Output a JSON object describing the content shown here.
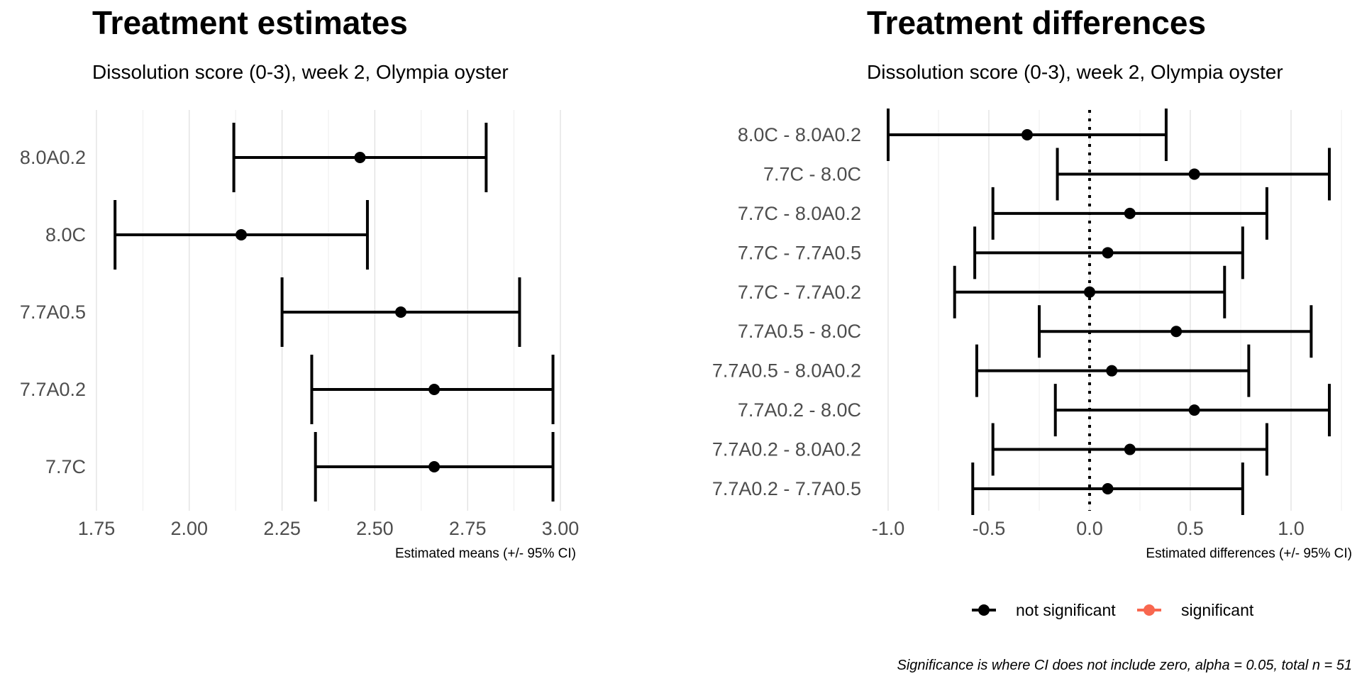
{
  "chart_data": [
    {
      "type": "errorbar",
      "title": "Treatment estimates",
      "subtitle": "Dissolution score (0-3), week 2, Olympia oyster",
      "xlabel": "Estimated means (+/- 95% CI)",
      "ylabel": "",
      "xlim": [
        1.75,
        3.0
      ],
      "xticks": [
        "1.75",
        "2.00",
        "2.25",
        "2.50",
        "2.75",
        "3.00"
      ],
      "grid": true,
      "categories": [
        "8.0A0.2",
        "8.0C",
        "7.7A0.5",
        "7.7A0.2",
        "7.7C"
      ],
      "estimate": [
        2.46,
        2.14,
        2.57,
        2.66,
        2.66
      ],
      "lower": [
        2.12,
        1.8,
        2.25,
        2.33,
        2.34
      ],
      "upper": [
        2.8,
        2.48,
        2.89,
        2.98,
        2.98
      ],
      "color": "#000000"
    },
    {
      "type": "errorbar",
      "title": "Treatment differences",
      "subtitle": "Dissolution score (0-3), week 2, Olympia oyster",
      "xlabel": "Estimated differences (+/- 95% CI)",
      "ylabel": "",
      "xlim": [
        -1.0,
        1.0
      ],
      "xticks": [
        "-1.0",
        "-0.5",
        "0.0",
        "0.5",
        "1.0"
      ],
      "reference_line": 0.0,
      "grid": true,
      "categories": [
        "8.0C - 8.0A0.2",
        "7.7C - 8.0C",
        "7.7C - 8.0A0.2",
        "7.7C - 7.7A0.5",
        "7.7C - 7.7A0.2",
        "7.7A0.5 - 8.0C",
        "7.7A0.5 - 8.0A0.2",
        "7.7A0.2 - 8.0C",
        "7.7A0.2 - 8.0A0.2",
        "7.7A0.2 - 7.7A0.5"
      ],
      "estimate": [
        -0.31,
        0.52,
        0.2,
        0.09,
        0.0,
        0.43,
        0.11,
        0.52,
        0.2,
        0.09
      ],
      "lower": [
        -1.0,
        -0.16,
        -0.48,
        -0.57,
        -0.67,
        -0.25,
        -0.56,
        -0.17,
        -0.48,
        -0.58
      ],
      "upper": [
        0.38,
        1.19,
        0.88,
        0.76,
        0.67,
        1.1,
        0.79,
        1.19,
        0.88,
        0.76
      ],
      "significance": [
        "not significant",
        "not significant",
        "not significant",
        "not significant",
        "not significant",
        "not significant",
        "not significant",
        "not significant",
        "not significant",
        "not significant"
      ],
      "legend": {
        "position": "bottom",
        "items": [
          {
            "label": "not significant",
            "color": "#000000"
          },
          {
            "label": "significant",
            "color": "#f8674f"
          }
        ]
      },
      "caption": "Significance is where CI does not include zero, alpha = 0.05, total n = 51"
    }
  ]
}
